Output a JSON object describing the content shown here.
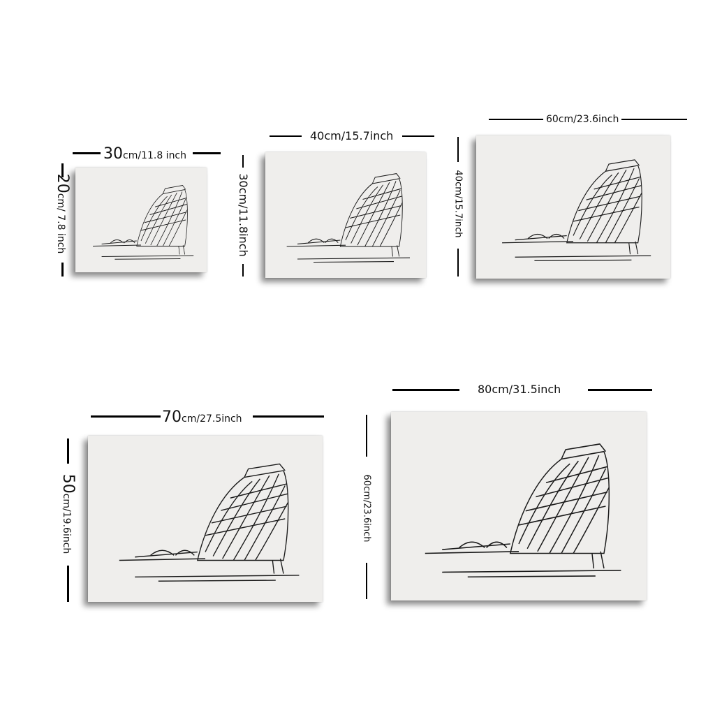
{
  "canvases": [
    {
      "width_label_big": "30",
      "width_label_small": "cm/11.8 inch",
      "height_label_big": "20",
      "height_label_small": "cm/ 7.8 inch"
    },
    {
      "width_label": "40cm/15.7inch",
      "height_label": "30cm/11.8inch"
    },
    {
      "width_label": "60cm/23.6inch",
      "height_label": "40cm/15.7inch"
    },
    {
      "width_label_big": "70",
      "width_label_small": "cm/27.5inch",
      "height_label_big": "50",
      "height_label_small": "cm/19.6inch"
    },
    {
      "width_label": "80cm/31.5inch",
      "height_label": "60cm/23.6inch"
    }
  ],
  "colors": {
    "canvas_bg": "#efeeec",
    "ink": "#111111"
  },
  "artwork": "ark-sketch"
}
